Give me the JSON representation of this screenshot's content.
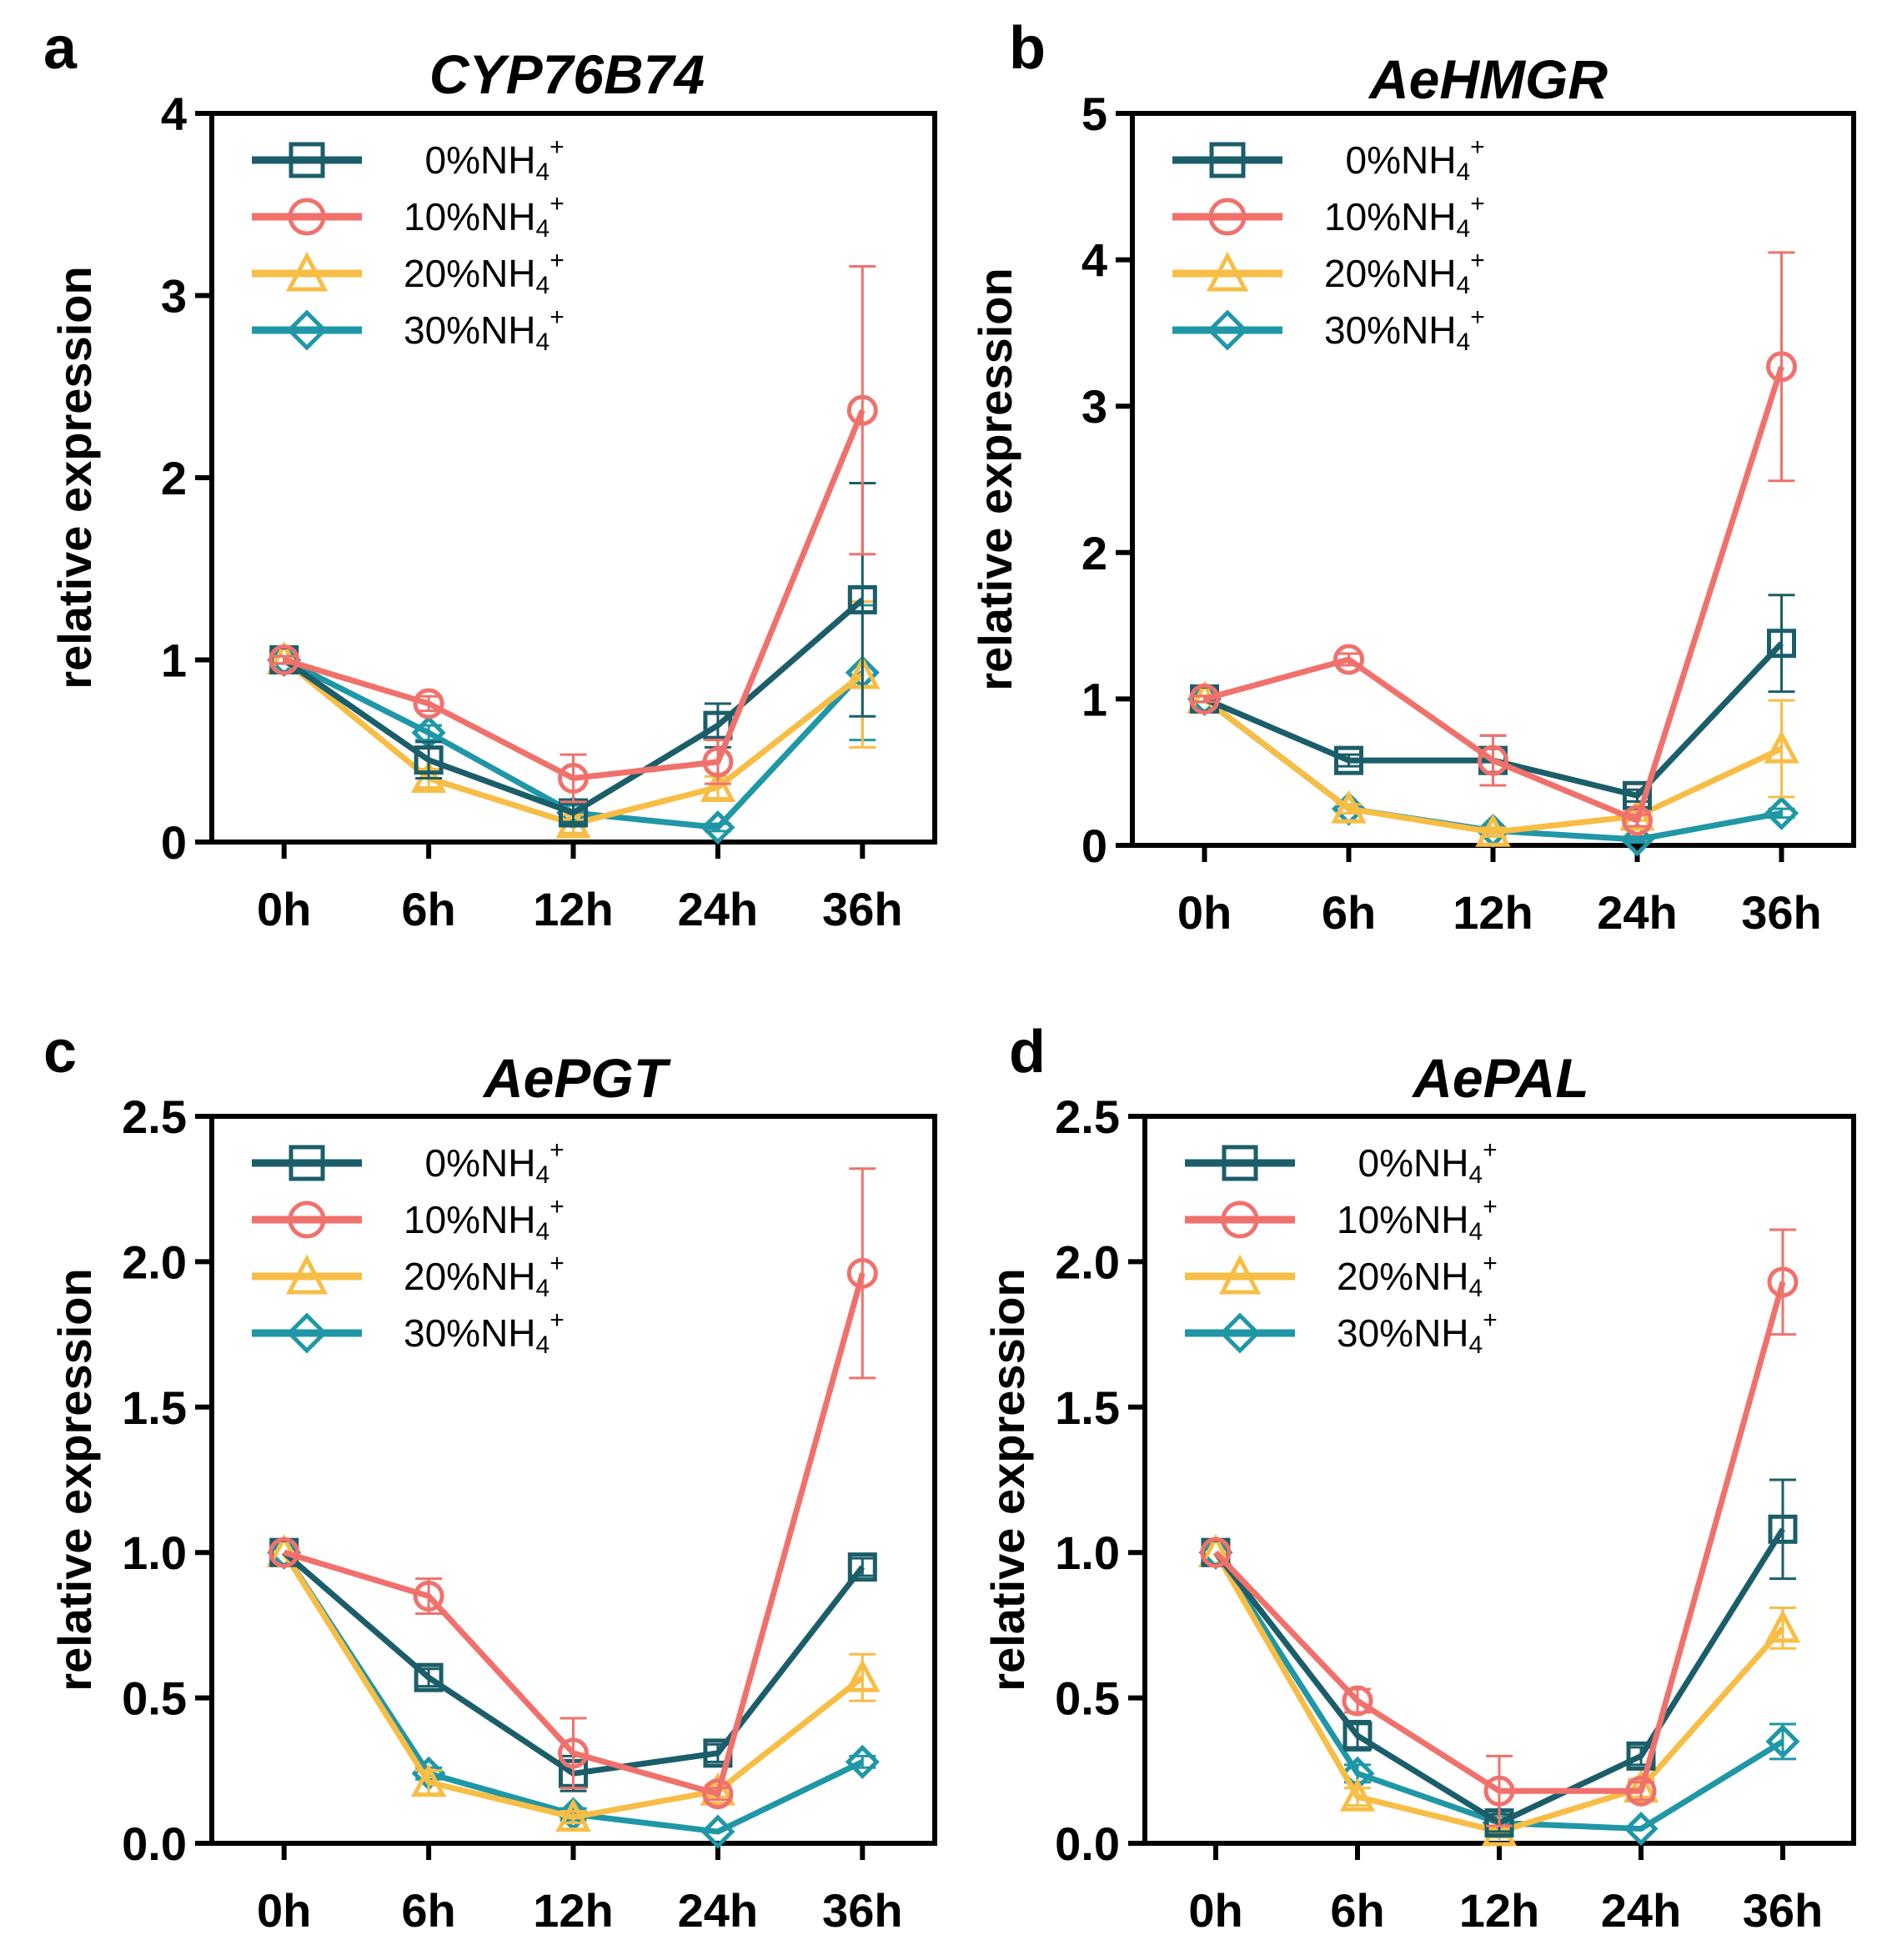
{
  "figure": {
    "colors": {
      "s0": "#1b5e6a",
      "s10": "#f0716c",
      "s20": "#f7bd45",
      "s30": "#1f97a6"
    },
    "legend": [
      {
        "key": "s0",
        "text": "  0%NH",
        "sub": "4",
        "sup": "+",
        "marker": "square"
      },
      {
        "key": "s10",
        "text": "10%NH",
        "sub": "4",
        "sup": "+",
        "marker": "circle"
      },
      {
        "key": "s20",
        "text": "20%NH",
        "sub": "4",
        "sup": "+",
        "marker": "triangle"
      },
      {
        "key": "s30",
        "text": "30%NH",
        "sub": "4",
        "sup": "+",
        "marker": "diamond"
      }
    ]
  },
  "chart_data": [
    {
      "panel": "a",
      "title": "CYP76B74",
      "type": "line",
      "categories": [
        "0h",
        "6h",
        "12h",
        "24h",
        "36h"
      ],
      "ylabel": "relative expression",
      "ylim": [
        0,
        4
      ],
      "yticks": [
        0,
        1,
        2,
        3,
        4
      ],
      "ytick_labels": [
        "0",
        "1",
        "2",
        "3",
        "4"
      ],
      "series": [
        {
          "name": "0%NH4+",
          "key": "s0",
          "values": [
            1.0,
            0.45,
            0.16,
            0.64,
            1.33
          ],
          "errors": [
            0.02,
            0.1,
            0.05,
            0.12,
            0.64
          ]
        },
        {
          "name": "10%NH4+",
          "key": "s10",
          "values": [
            1.0,
            0.76,
            0.35,
            0.44,
            2.37
          ],
          "errors": [
            0.02,
            0.04,
            0.13,
            0.12,
            0.79
          ]
        },
        {
          "name": "20%NH4+",
          "key": "s20",
          "values": [
            1.0,
            0.35,
            0.1,
            0.3,
            0.92
          ],
          "errors": [
            0.02,
            0.05,
            0.05,
            0.06,
            0.4
          ]
        },
        {
          "name": "30%NH4+",
          "key": "s30",
          "values": [
            1.0,
            0.6,
            0.16,
            0.08,
            0.93
          ],
          "errors": [
            0.02,
            0.04,
            0.04,
            0.02,
            0.37
          ]
        }
      ]
    },
    {
      "panel": "b",
      "title": "AeHMGR",
      "type": "line",
      "categories": [
        "0h",
        "6h",
        "12h",
        "24h",
        "36h"
      ],
      "ylabel": "relative expression",
      "ylim": [
        0,
        5
      ],
      "yticks": [
        0,
        1,
        2,
        3,
        4,
        5
      ],
      "ytick_labels": [
        "0",
        "1",
        "2",
        "3",
        "4",
        "5"
      ],
      "series": [
        {
          "name": "0%NH4+",
          "key": "s0",
          "values": [
            1.0,
            0.58,
            0.58,
            0.34,
            1.38
          ],
          "errors": [
            0.02,
            0.04,
            0.17,
            0.04,
            0.33
          ]
        },
        {
          "name": "10%NH4+",
          "key": "s10",
          "values": [
            1.0,
            1.27,
            0.58,
            0.17,
            3.27
          ],
          "errors": [
            0.02,
            0.04,
            0.17,
            0.04,
            0.78
          ]
        },
        {
          "name": "20%NH4+",
          "key": "s20",
          "values": [
            1.0,
            0.25,
            0.09,
            0.2,
            0.66
          ],
          "errors": [
            0.02,
            0.03,
            0.03,
            0.03,
            0.33
          ]
        },
        {
          "name": "30%NH4+",
          "key": "s30",
          "values": [
            1.0,
            0.25,
            0.1,
            0.04,
            0.22
          ],
          "errors": [
            0.02,
            0.03,
            0.02,
            0.02,
            0.03
          ]
        }
      ]
    },
    {
      "panel": "c",
      "title": "AePGT",
      "type": "line",
      "categories": [
        "0h",
        "6h",
        "12h",
        "24h",
        "36h"
      ],
      "ylabel": "relative expression",
      "ylim": [
        0,
        2.5
      ],
      "yticks": [
        0,
        0.5,
        1,
        1.5,
        2,
        2.5
      ],
      "ytick_labels": [
        "0.0",
        "0.5",
        "1.0",
        "1.5",
        "2.0",
        "2.5"
      ],
      "series": [
        {
          "name": "0%NH4+",
          "key": "s0",
          "values": [
            1.0,
            0.57,
            0.24,
            0.31,
            0.95
          ],
          "errors": [
            0.01,
            0.03,
            0.06,
            0.03,
            0.03
          ]
        },
        {
          "name": "10%NH4+",
          "key": "s10",
          "values": [
            1.0,
            0.85,
            0.31,
            0.17,
            1.96
          ],
          "errors": [
            0.01,
            0.06,
            0.12,
            0.02,
            0.36
          ]
        },
        {
          "name": "20%NH4+",
          "key": "s20",
          "values": [
            1.0,
            0.21,
            0.09,
            0.18,
            0.57
          ],
          "errors": [
            0.01,
            0.04,
            0.02,
            0.02,
            0.08
          ]
        },
        {
          "name": "30%NH4+",
          "key": "s30",
          "values": [
            1.0,
            0.24,
            0.1,
            0.04,
            0.28
          ],
          "errors": [
            0.01,
            0.02,
            0.02,
            0.01,
            0.02
          ]
        }
      ]
    },
    {
      "panel": "d",
      "title": "AePAL",
      "type": "line",
      "categories": [
        "0h",
        "6h",
        "12h",
        "24h",
        "36h"
      ],
      "ylabel": "relative expression",
      "ylim": [
        0,
        2.5
      ],
      "yticks": [
        0,
        0.5,
        1,
        1.5,
        2,
        2.5
      ],
      "ytick_labels": [
        "0.0",
        "0.5",
        "1.0",
        "1.5",
        "2.0",
        "2.5"
      ],
      "series": [
        {
          "name": "0%NH4+",
          "key": "s0",
          "values": [
            1.0,
            0.37,
            0.07,
            0.3,
            1.08
          ],
          "errors": [
            0.01,
            0.05,
            0.03,
            0.03,
            0.17
          ]
        },
        {
          "name": "10%NH4+",
          "key": "s10",
          "values": [
            1.0,
            0.49,
            0.18,
            0.18,
            1.93
          ],
          "errors": [
            0.01,
            0.04,
            0.12,
            0.03,
            0.18
          ]
        },
        {
          "name": "20%NH4+",
          "key": "s20",
          "values": [
            1.0,
            0.16,
            0.04,
            0.19,
            0.74
          ],
          "errors": [
            0.01,
            0.03,
            0.02,
            0.03,
            0.07
          ]
        },
        {
          "name": "30%NH4+",
          "key": "s30",
          "values": [
            1.0,
            0.24,
            0.07,
            0.05,
            0.35
          ],
          "errors": [
            0.01,
            0.03,
            0.02,
            0.01,
            0.06
          ]
        }
      ]
    }
  ]
}
